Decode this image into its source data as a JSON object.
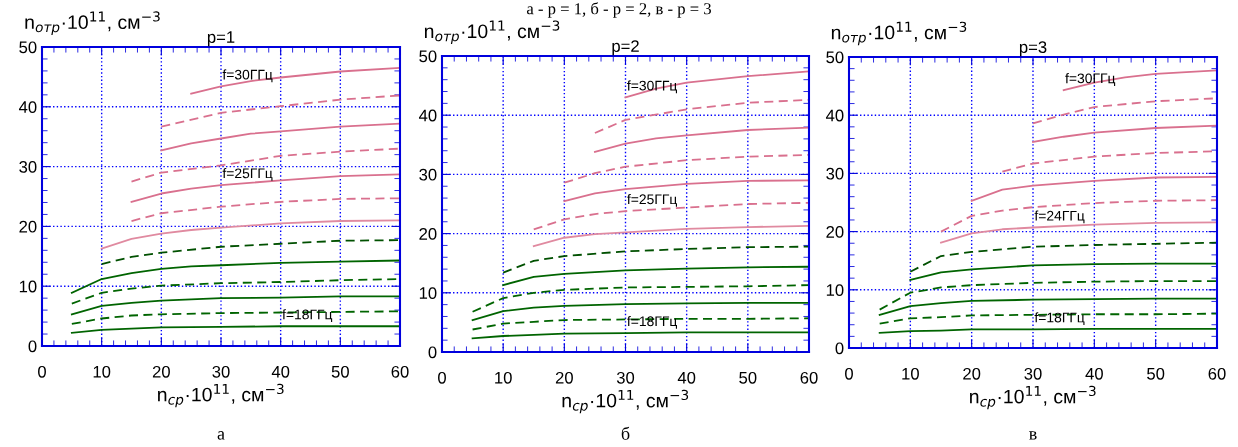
{
  "chart_data": [
    {
      "type": "line",
      "title": "p=1",
      "xlabel": "n$_{ср}$·10$^{11}$, см$^{−3}$",
      "ylabel": "n$_{отр}$·10$^{11}$, см$^{−3}$",
      "xlim": [
        0,
        60
      ],
      "ylim": [
        0,
        50
      ],
      "xticks": [
        0,
        10,
        20,
        30,
        40,
        50,
        60
      ],
      "yticks": [
        0,
        10,
        20,
        30,
        40,
        50
      ],
      "grid": true,
      "legend": false,
      "annotations": [
        "а - p = 1, б - p = 2, в - p = 3",
        "а",
        {
          "text": "f=30ГГц",
          "x": 30,
          "y": 43.4
        },
        {
          "text": "f=25ГГц",
          "x": 30,
          "y": 26.9
        },
        {
          "text": "f=18ГГц",
          "x": 40,
          "y": 3.3
        }
      ],
      "series": [
        {
          "color": "#006400",
          "line_style": "solid",
          "x": [
            5,
            10,
            15,
            20,
            30,
            40,
            50,
            60
          ],
          "values": [
            2.2,
            2.7,
            2.9,
            3.1,
            3.2,
            3.3,
            3.3,
            3.3
          ]
        },
        {
          "color": "#006400",
          "line_style": "dashed",
          "x": [
            5,
            10,
            15,
            20,
            30,
            40,
            50,
            60
          ],
          "values": [
            3.7,
            4.6,
            5.1,
            5.3,
            5.5,
            5.6,
            5.7,
            5.8
          ]
        },
        {
          "color": "#006400",
          "line_style": "solid",
          "x": [
            5,
            10,
            15,
            20,
            30,
            40,
            50,
            60
          ],
          "values": [
            5.3,
            6.7,
            7.2,
            7.6,
            8.0,
            8.1,
            8.3,
            8.3
          ]
        },
        {
          "color": "#006400",
          "line_style": "dashed",
          "x": [
            5,
            10,
            15,
            20,
            30,
            40,
            50,
            60
          ],
          "values": [
            7.1,
            8.9,
            9.6,
            10.1,
            10.5,
            10.7,
            11.0,
            11.2
          ]
        },
        {
          "color": "#006400",
          "line_style": "solid",
          "x": [
            5,
            10,
            15,
            20,
            25,
            30,
            40,
            50,
            60
          ],
          "values": [
            8.9,
            11.2,
            12.2,
            12.9,
            13.3,
            13.5,
            13.9,
            14.1,
            14.3
          ]
        },
        {
          "color": "#005000",
          "line_style": "dashed",
          "x": [
            10,
            15,
            20,
            30,
            40,
            50,
            60
          ],
          "values": [
            13.7,
            14.9,
            15.6,
            16.6,
            17.1,
            17.6,
            17.7
          ]
        },
        {
          "color": "#e08aa0",
          "line_style": "solid",
          "x": [
            10,
            15,
            20,
            25,
            30,
            40,
            50,
            60
          ],
          "values": [
            16.3,
            17.9,
            18.8,
            19.4,
            19.8,
            20.5,
            20.9,
            21.0
          ]
        },
        {
          "color": "#d9708e",
          "line_style": "dashed",
          "x": [
            15,
            20,
            30,
            40,
            50,
            60
          ],
          "values": [
            20.9,
            22.2,
            23.3,
            24.1,
            24.6,
            24.7
          ]
        },
        {
          "color": "#d9708e",
          "line_style": "solid",
          "x": [
            15,
            20,
            25,
            30,
            40,
            50,
            60
          ],
          "values": [
            24.1,
            25.5,
            26.3,
            26.9,
            27.7,
            28.4,
            28.7
          ]
        },
        {
          "color": "#d9708e",
          "line_style": "dashed",
          "x": [
            15,
            20,
            30,
            40,
            50,
            60
          ],
          "values": [
            27.5,
            29.0,
            30.2,
            31.8,
            32.5,
            33.0
          ]
        },
        {
          "color": "#d9708e",
          "line_style": "solid",
          "x": [
            20,
            25,
            30,
            35,
            40,
            50,
            60
          ],
          "values": [
            32.7,
            33.9,
            34.7,
            35.5,
            35.9,
            36.7,
            37.2
          ]
        },
        {
          "color": "#d9708e",
          "line_style": "dashed",
          "x": [
            20,
            30,
            40,
            50,
            60
          ],
          "values": [
            36.7,
            39.0,
            40.1,
            41.2,
            41.9
          ]
        },
        {
          "color": "#d9708e",
          "line_style": "solid",
          "x": [
            25,
            30,
            35,
            40,
            50,
            60
          ],
          "values": [
            42.2,
            43.4,
            44.3,
            44.9,
            45.9,
            46.5
          ]
        }
      ]
    },
    {
      "type": "line",
      "title": "p=2",
      "xlabel": "n$_{ср}$·10$^{11}$, см$^{−3}$",
      "ylabel": "n$_{отр}$·10$^{11}$, см$^{−3}$",
      "xlim": [
        0,
        60
      ],
      "ylim": [
        0,
        50
      ],
      "xticks": [
        0,
        10,
        20,
        30,
        40,
        50,
        60
      ],
      "yticks": [
        0,
        10,
        20,
        30,
        40,
        50
      ],
      "grid": true,
      "legend": false,
      "annotations": [
        "б",
        {
          "text": "f=30ГГц",
          "x": 30,
          "y": 43.0
        },
        {
          "text": "f=25ГГц",
          "x": 30,
          "y": 23.8
        },
        {
          "text": "f=18ГГц",
          "x": 30,
          "y": 3.2
        }
      ],
      "series": [
        {
          "color": "#006400",
          "line_style": "solid",
          "x": [
            5,
            10,
            15,
            20,
            30,
            40,
            50,
            60
          ],
          "values": [
            2.3,
            2.7,
            2.9,
            3.1,
            3.2,
            3.3,
            3.3,
            3.3
          ]
        },
        {
          "color": "#006400",
          "line_style": "dashed",
          "x": [
            5,
            10,
            15,
            20,
            30,
            40,
            50,
            60
          ],
          "values": [
            3.8,
            4.8,
            5.1,
            5.4,
            5.5,
            5.6,
            5.6,
            5.7
          ]
        },
        {
          "color": "#006400",
          "line_style": "solid",
          "x": [
            5,
            10,
            15,
            20,
            30,
            40,
            50,
            60
          ],
          "values": [
            5.4,
            6.9,
            7.5,
            7.8,
            8.1,
            8.2,
            8.3,
            8.3
          ]
        },
        {
          "color": "#006400",
          "line_style": "dashed",
          "x": [
            5,
            10,
            15,
            20,
            30,
            40,
            50,
            60
          ],
          "values": [
            6.8,
            9.1,
            10.0,
            10.5,
            10.9,
            11.0,
            11.1,
            11.3
          ]
        },
        {
          "color": "#006400",
          "line_style": "solid",
          "x": [
            10,
            15,
            20,
            30,
            40,
            50,
            60
          ],
          "values": [
            11.3,
            12.7,
            13.2,
            13.8,
            14.1,
            14.3,
            14.4
          ]
        },
        {
          "color": "#005000",
          "line_style": "dashed",
          "x": [
            10,
            15,
            20,
            30,
            40,
            50,
            60
          ],
          "values": [
            13.4,
            15.4,
            16.2,
            17.0,
            17.4,
            17.7,
            17.8
          ]
        },
        {
          "color": "#e08aa0",
          "line_style": "solid",
          "x": [
            15,
            20,
            25,
            30,
            40,
            50,
            60
          ],
          "values": [
            17.9,
            19.3,
            19.9,
            20.2,
            20.8,
            21.1,
            21.3
          ]
        },
        {
          "color": "#d9708e",
          "line_style": "dashed",
          "x": [
            15,
            20,
            25,
            30,
            40,
            50,
            60
          ],
          "values": [
            20.7,
            22.4,
            23.3,
            23.8,
            24.4,
            25.0,
            25.2
          ]
        },
        {
          "color": "#d9708e",
          "line_style": "solid",
          "x": [
            20,
            25,
            30,
            40,
            50,
            60
          ],
          "values": [
            25.5,
            26.8,
            27.5,
            28.4,
            28.9,
            29.0
          ]
        },
        {
          "color": "#d9708e",
          "line_style": "dashed",
          "x": [
            20,
            25,
            30,
            40,
            50,
            60
          ],
          "values": [
            28.6,
            30.2,
            31.3,
            32.4,
            33.0,
            33.3
          ]
        },
        {
          "color": "#d9708e",
          "line_style": "solid",
          "x": [
            25,
            30,
            35,
            40,
            50,
            60
          ],
          "values": [
            33.8,
            35.2,
            36.1,
            36.6,
            37.5,
            37.9
          ]
        },
        {
          "color": "#d9708e",
          "line_style": "dashed",
          "x": [
            25,
            30,
            40,
            50,
            60
          ],
          "values": [
            37.0,
            39.2,
            41.0,
            42.1,
            42.6
          ]
        },
        {
          "color": "#d9708e",
          "line_style": "solid",
          "x": [
            30,
            35,
            40,
            50,
            60
          ],
          "values": [
            43.0,
            44.5,
            45.5,
            46.6,
            47.4
          ]
        }
      ]
    },
    {
      "type": "line",
      "title": "p=3",
      "xlabel": "n$_{ср}$·10$^{11}$, см$^{−3}$",
      "ylabel": "n$_{отр}$·10$^{11}$, см$^{−3}$",
      "xlim": [
        0,
        60
      ],
      "ylim": [
        0,
        50
      ],
      "xticks": [
        0,
        10,
        20,
        30,
        40,
        50,
        60
      ],
      "yticks": [
        0,
        10,
        20,
        30,
        40,
        50
      ],
      "grid": true,
      "legend": false,
      "annotations": [
        "в",
        {
          "text": "f=30ГГц",
          "x": 35,
          "y": 44.3
        },
        {
          "text": "f=24ГГц",
          "x": 30,
          "y": 20.7
        },
        {
          "text": "f=18ГГц",
          "x": 30,
          "y": 3.2
        }
      ],
      "series": [
        {
          "color": "#006400",
          "line_style": "solid",
          "x": [
            5,
            10,
            15,
            20,
            30,
            40,
            50,
            60
          ],
          "values": [
            2.6,
            2.9,
            3.0,
            3.2,
            3.2,
            3.3,
            3.3,
            3.3
          ]
        },
        {
          "color": "#006400",
          "line_style": "dashed",
          "x": [
            5,
            10,
            15,
            20,
            30,
            40,
            50,
            60
          ],
          "values": [
            4.2,
            5.1,
            5.3,
            5.6,
            5.7,
            5.8,
            5.8,
            5.9
          ]
        },
        {
          "color": "#006400",
          "line_style": "solid",
          "x": [
            5,
            10,
            15,
            20,
            30,
            40,
            50,
            60
          ],
          "values": [
            5.7,
            7.2,
            7.7,
            8.1,
            8.3,
            8.4,
            8.5,
            8.5
          ]
        },
        {
          "color": "#006400",
          "line_style": "dashed",
          "x": [
            5,
            10,
            15,
            20,
            30,
            40,
            50,
            60
          ],
          "values": [
            6.6,
            9.5,
            10.4,
            10.8,
            11.2,
            11.4,
            11.5,
            11.5
          ]
        },
        {
          "color": "#006400",
          "line_style": "solid",
          "x": [
            10,
            15,
            20,
            30,
            40,
            50,
            60
          ],
          "values": [
            11.7,
            13.0,
            13.5,
            14.2,
            14.4,
            14.5,
            14.5
          ]
        },
        {
          "color": "#005000",
          "line_style": "dashed",
          "x": [
            10,
            15,
            20,
            30,
            40,
            50,
            60
          ],
          "values": [
            13.1,
            15.8,
            16.5,
            17.4,
            17.7,
            17.9,
            18.1
          ]
        },
        {
          "color": "#e08aa0",
          "line_style": "solid",
          "x": [
            15,
            20,
            25,
            30,
            40,
            50,
            60
          ],
          "values": [
            18.1,
            19.7,
            20.4,
            20.7,
            21.2,
            21.5,
            21.6
          ]
        },
        {
          "color": "#d9708e",
          "line_style": "dashed",
          "x": [
            15,
            20,
            25,
            30,
            40,
            50,
            60
          ],
          "values": [
            20.0,
            22.7,
            23.6,
            24.2,
            24.9,
            25.3,
            25.4
          ]
        },
        {
          "color": "#d9708e",
          "line_style": "solid",
          "x": [
            20,
            25,
            30,
            40,
            50,
            60
          ],
          "values": [
            25.3,
            27.2,
            27.9,
            28.7,
            29.3,
            29.4
          ]
        },
        {
          "color": "#d9708e",
          "line_style": "dashed",
          "x": [
            25,
            30,
            40,
            50,
            60
          ],
          "values": [
            30.3,
            31.7,
            32.9,
            33.5,
            33.8
          ]
        },
        {
          "color": "#d9708e",
          "line_style": "solid",
          "x": [
            30,
            35,
            40,
            50,
            60
          ],
          "values": [
            35.4,
            36.3,
            37.0,
            37.8,
            38.2
          ]
        },
        {
          "color": "#d9708e",
          "line_style": "dashed",
          "x": [
            30,
            35,
            40,
            50,
            60
          ],
          "values": [
            38.6,
            40.1,
            41.4,
            42.4,
            42.9
          ]
        },
        {
          "color": "#d9708e",
          "line_style": "solid",
          "x": [
            35,
            40,
            45,
            50,
            60
          ],
          "values": [
            44.3,
            45.6,
            46.5,
            47.1,
            47.7
          ]
        }
      ]
    }
  ]
}
